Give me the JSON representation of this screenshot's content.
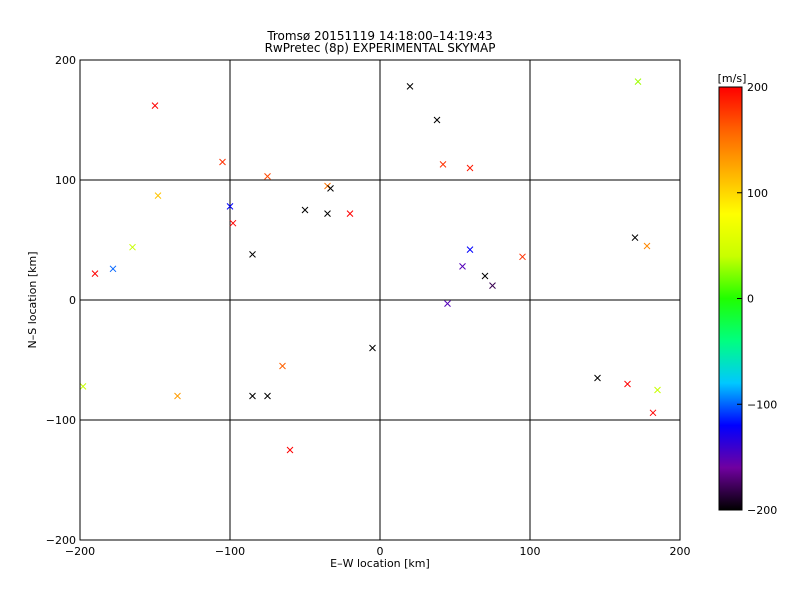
{
  "chart_data": {
    "type": "scatter",
    "title": "Tromsø 20151119 14:18:00–14:19:43",
    "subtitle": "RwPretec (8p) EXPERIMENTAL SKYMAP",
    "xlabel": "E–W location [km]",
    "ylabel": "N–S location [km]",
    "xlim": [
      -200,
      200
    ],
    "ylim": [
      -200,
      200
    ],
    "x_ticks": [
      -200,
      -100,
      0,
      100,
      200
    ],
    "y_ticks": [
      -200,
      -100,
      0,
      100,
      200
    ],
    "x_tick_labels": [
      "−200",
      "−100",
      "0",
      "100",
      "200"
    ],
    "y_tick_labels": [
      "−200",
      "−100",
      "0",
      "100",
      "200"
    ],
    "grid": true,
    "colorbar": {
      "label": "[m/s]",
      "range": [
        -200,
        200
      ],
      "ticks": [
        200,
        100,
        0,
        -100,
        -200
      ],
      "tick_labels": [
        "200",
        "100",
        "0",
        "−100",
        "−200"
      ],
      "colors": [
        "#000000",
        "#7000a0",
        "#0000ff",
        "#00c8ff",
        "#00ff80",
        "#20ff00",
        "#c8ff00",
        "#ffff00",
        "#ffb000",
        "#ff6000",
        "#ff0000"
      ]
    },
    "marker_types": [
      "dot",
      "cross"
    ],
    "series": [
      {
        "marker": "cross",
        "x": -150,
        "y": 162,
        "v": 200
      },
      {
        "marker": "cross",
        "x": -105,
        "y": 115,
        "v": 180
      },
      {
        "marker": "cross",
        "x": -75,
        "y": 103,
        "v": 170
      },
      {
        "marker": "cross",
        "x": -35,
        "y": 95,
        "v": 150
      },
      {
        "marker": "cross",
        "x": 20,
        "y": 178,
        "v": -200
      },
      {
        "marker": "cross",
        "x": 38,
        "y": 150,
        "v": -200
      },
      {
        "marker": "cross",
        "x": 42,
        "y": 113,
        "v": 180
      },
      {
        "marker": "cross",
        "x": 60,
        "y": 110,
        "v": 190
      },
      {
        "marker": "cross",
        "x": -33,
        "y": 93,
        "v": -200
      },
      {
        "marker": "cross",
        "x": -50,
        "y": 75,
        "v": -200
      },
      {
        "marker": "cross",
        "x": -35,
        "y": 72,
        "v": -200
      },
      {
        "marker": "cross",
        "x": -20,
        "y": 72,
        "v": 200
      },
      {
        "marker": "cross",
        "x": -100,
        "y": 78,
        "v": -120
      },
      {
        "marker": "cross",
        "x": -98,
        "y": 64,
        "v": 200
      },
      {
        "marker": "cross",
        "x": -85,
        "y": 38,
        "v": -200
      },
      {
        "marker": "cross",
        "x": -190,
        "y": 22,
        "v": 200
      },
      {
        "marker": "cross",
        "x": -178,
        "y": 26,
        "v": -100
      },
      {
        "marker": "cross",
        "x": -165,
        "y": 44,
        "v": 40
      },
      {
        "marker": "cross",
        "x": -148,
        "y": 87,
        "v": 110
      },
      {
        "marker": "cross",
        "x": 170,
        "y": 52,
        "v": -200
      },
      {
        "marker": "cross",
        "x": 178,
        "y": 45,
        "v": 140
      },
      {
        "marker": "cross",
        "x": 172,
        "y": 182,
        "v": 30
      },
      {
        "marker": "cross",
        "x": 145,
        "y": -65,
        "v": -200
      },
      {
        "marker": "cross",
        "x": 165,
        "y": -70,
        "v": 200
      },
      {
        "marker": "cross",
        "x": 182,
        "y": -94,
        "v": 200
      },
      {
        "marker": "cross",
        "x": 185,
        "y": -75,
        "v": 40
      },
      {
        "marker": "cross",
        "x": -75,
        "y": -80,
        "v": -200
      },
      {
        "marker": "cross",
        "x": -85,
        "y": -80,
        "v": -200
      },
      {
        "marker": "cross",
        "x": -5,
        "y": -40,
        "v": -200
      },
      {
        "marker": "cross",
        "x": -60,
        "y": -125,
        "v": 200
      },
      {
        "marker": "cross",
        "x": -65,
        "y": -55,
        "v": 160
      },
      {
        "marker": "cross",
        "x": -135,
        "y": -80,
        "v": 130
      },
      {
        "marker": "cross",
        "x": -198,
        "y": -72,
        "v": 40
      },
      {
        "marker": "cross",
        "x": 45,
        "y": -3,
        "v": -150
      },
      {
        "marker": "cross",
        "x": 55,
        "y": 28,
        "v": -150
      },
      {
        "marker": "cross",
        "x": 75,
        "y": 12,
        "v": -180
      },
      {
        "marker": "cross",
        "x": 70,
        "y": 20,
        "v": -200
      },
      {
        "marker": "cross",
        "x": 60,
        "y": 42,
        "v": -120
      },
      {
        "marker": "cross",
        "x": 95,
        "y": 36,
        "v": 180
      }
    ]
  }
}
